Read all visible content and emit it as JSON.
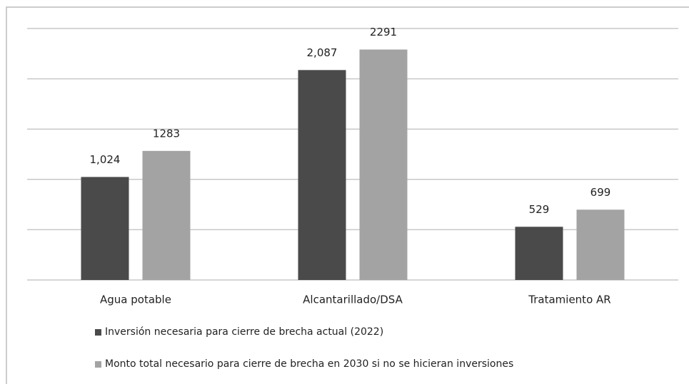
{
  "chart_data": {
    "type": "bar",
    "categories": [
      "Agua potable",
      "Alcantarillado/DSA",
      "Tratamiento AR"
    ],
    "series": [
      {
        "name": "Inversión necesaria para cierre de brecha actual  (2022)",
        "color": "#4a4a4a",
        "values": [
          1024,
          2087,
          529
        ],
        "value_labels": [
          "1,024",
          "2,087",
          "529"
        ]
      },
      {
        "name": "Monto total necesario para cierre de brecha en 2030 si no se  hicieran inversiones",
        "color": "#a3a3a3",
        "values": [
          1283,
          2291,
          699
        ]
      }
    ],
    "ylim": [
      0,
      2500
    ],
    "yticks": [
      0,
      500,
      1000,
      1500,
      2000,
      2500
    ],
    "grid": true
  }
}
